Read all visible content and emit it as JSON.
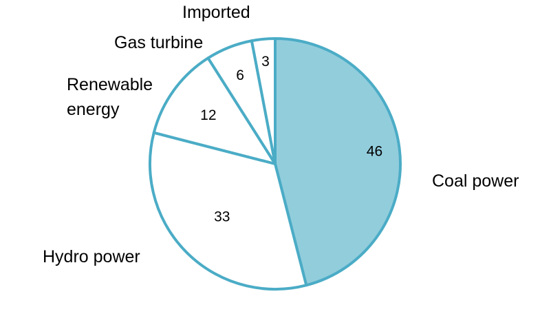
{
  "chart_data": {
    "type": "pie",
    "title": "",
    "slices": [
      {
        "label": "Coal power",
        "value": 46,
        "filled": true
      },
      {
        "label": "Hydro power",
        "value": 33,
        "filled": false
      },
      {
        "label": "Renewable energy",
        "label_lines": [
          "Renewable",
          "energy"
        ],
        "value": 12,
        "filled": false
      },
      {
        "label": "Gas turbine",
        "value": 6,
        "filled": false
      },
      {
        "label": "Imported",
        "value": 3,
        "filled": false
      }
    ],
    "colors": {
      "stroke": "#4bacc6",
      "highlight_fill": "#92cddc",
      "fill": "#ffffff",
      "text": "#000000"
    }
  }
}
